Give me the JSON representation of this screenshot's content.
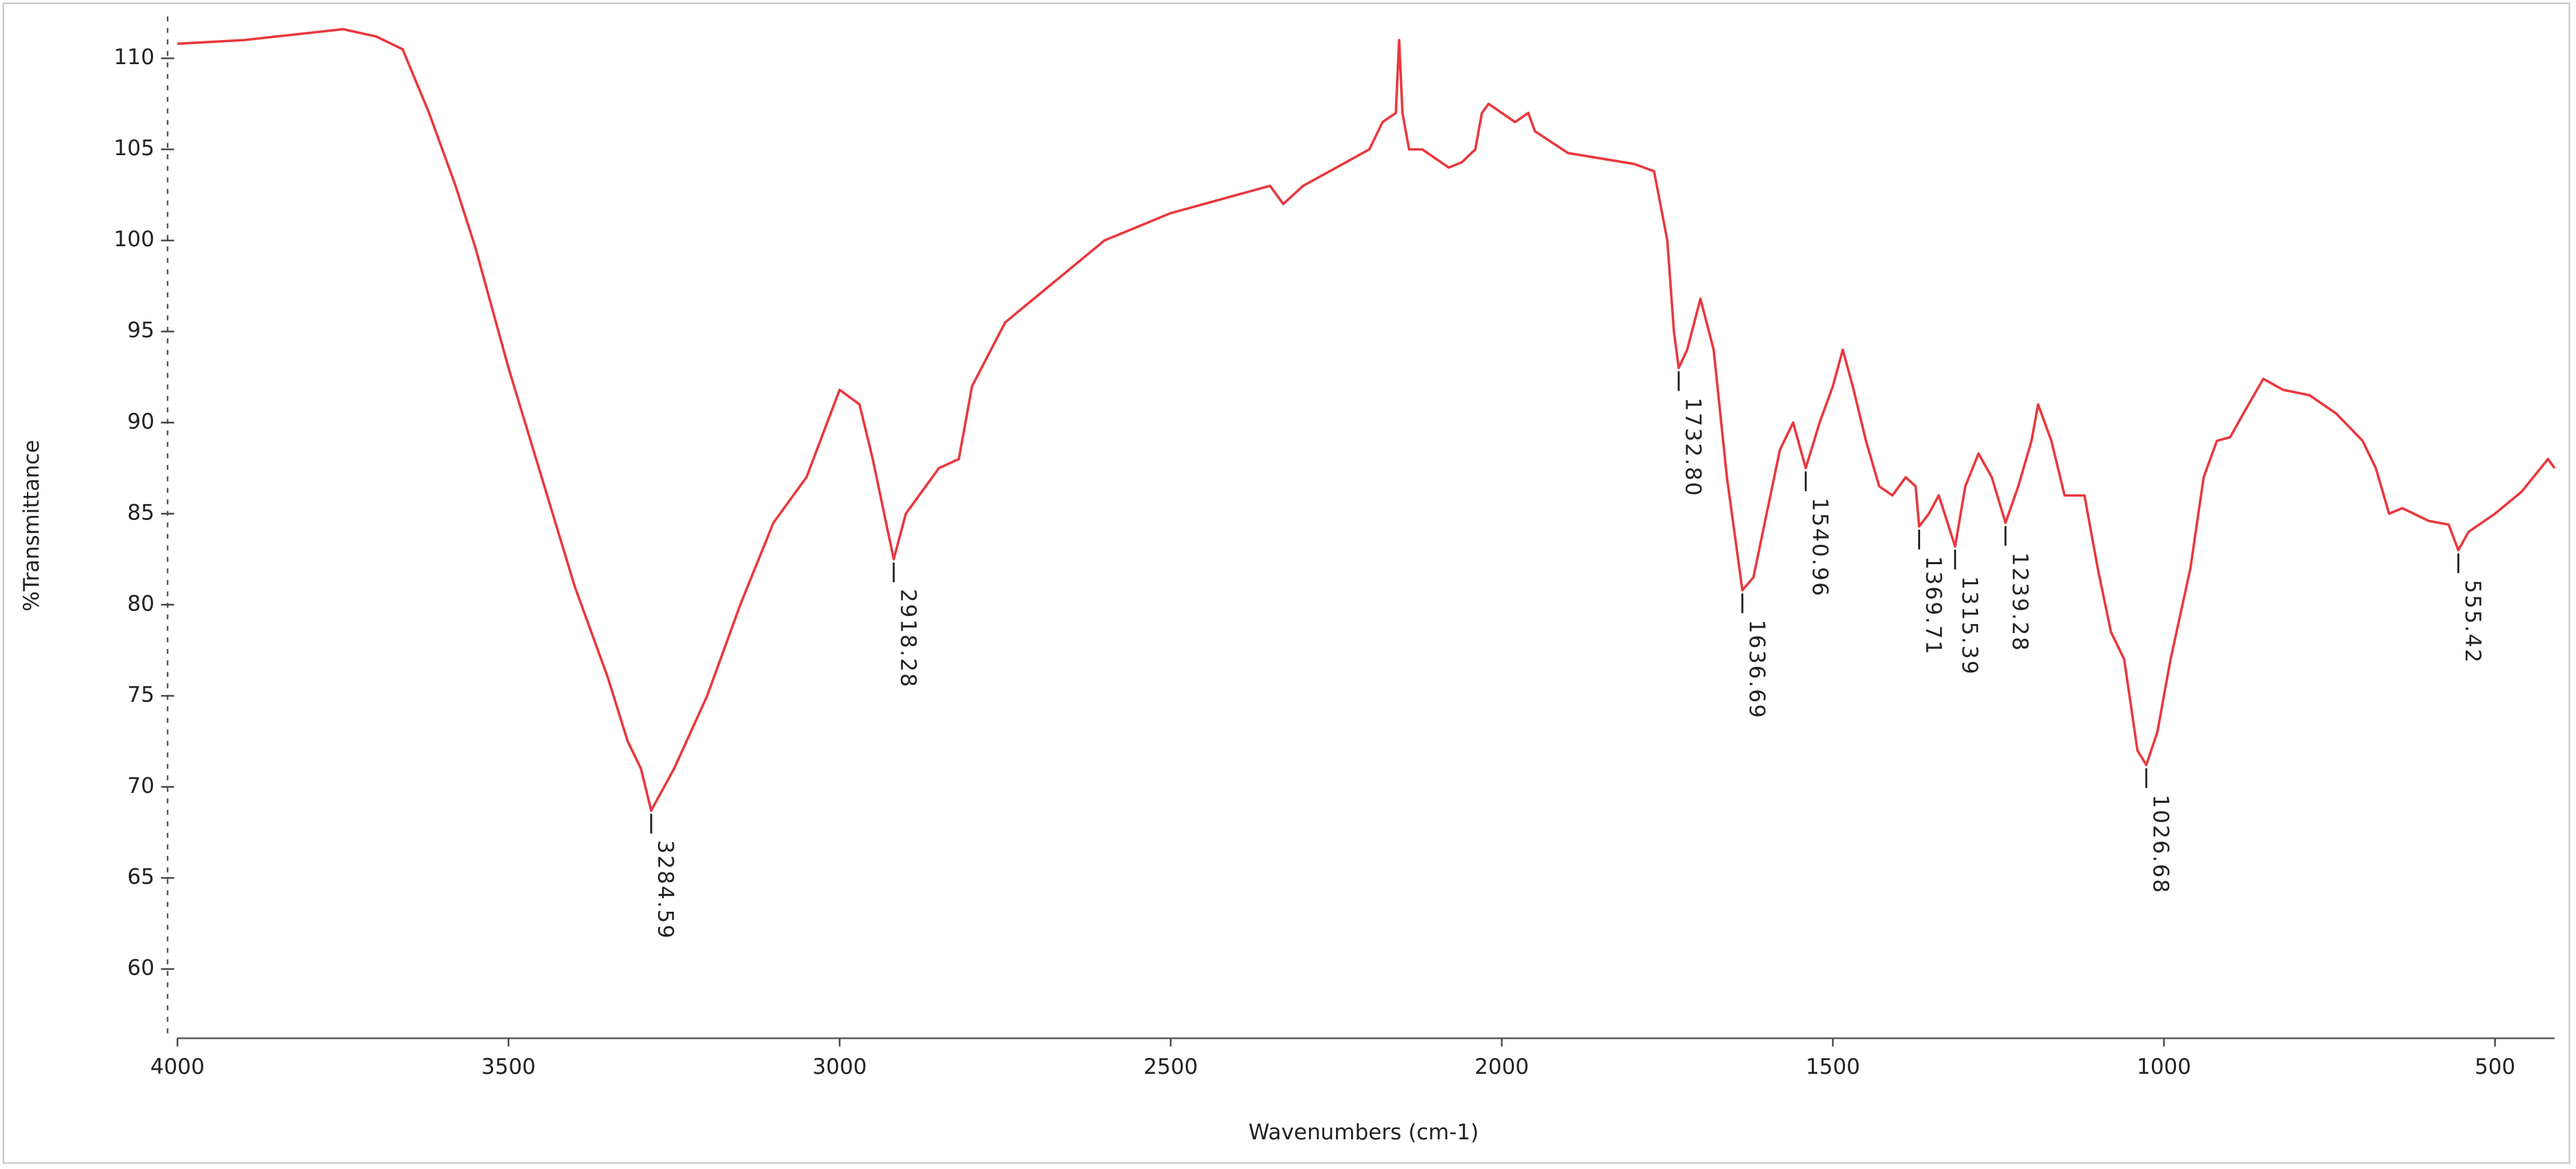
{
  "chart_data": {
    "type": "line",
    "xlabel": "Wavenumbers (cm-1)",
    "ylabel": "%Transmittance",
    "color": "#e8383d",
    "x": [
      4000,
      3900,
      3800,
      3750,
      3700,
      3660,
      3620,
      3580,
      3550,
      3500,
      3450,
      3400,
      3350,
      3320,
      3300,
      3284.59,
      3250,
      3200,
      3150,
      3100,
      3050,
      3000,
      2970,
      2950,
      2918.28,
      2900,
      2850,
      2820,
      2800,
      2750,
      2700,
      2650,
      2600,
      2500,
      2400,
      2350,
      2330,
      2300,
      2250,
      2200,
      2180,
      2160,
      2155,
      2150,
      2140,
      2120,
      2080,
      2060,
      2040,
      2030,
      2020,
      2000,
      1980,
      1960,
      1950,
      1900,
      1850,
      1800,
      1770,
      1750,
      1740,
      1732.8,
      1720,
      1700,
      1680,
      1660,
      1636.69,
      1620,
      1600,
      1580,
      1560,
      1540.96,
      1520,
      1500,
      1485,
      1470,
      1450,
      1430,
      1410,
      1390,
      1375,
      1369.71,
      1355,
      1340,
      1315.39,
      1300,
      1280,
      1260,
      1239.28,
      1220,
      1200,
      1190,
      1170,
      1150,
      1120,
      1100,
      1080,
      1060,
      1040,
      1026.68,
      1010,
      990,
      960,
      940,
      920,
      900,
      880,
      850,
      820,
      780,
      740,
      700,
      680,
      660,
      640,
      600,
      570,
      555.42,
      540,
      500,
      460,
      420,
      410
    ],
    "values": [
      110.8,
      111,
      111.4,
      111.6,
      111.2,
      110.5,
      107,
      103,
      99.6,
      93,
      87,
      81,
      76,
      72.5,
      71,
      68.7,
      71,
      75,
      80,
      84.5,
      87,
      91.8,
      91,
      88,
      82.5,
      85,
      87.5,
      88,
      92,
      95.5,
      97,
      98.5,
      100,
      101.5,
      102.5,
      103,
      102,
      103,
      104,
      105,
      106.5,
      107,
      111,
      107,
      105,
      105,
      104,
      104.3,
      105,
      107,
      107.5,
      107,
      106.5,
      107,
      106,
      104.8,
      104.5,
      104.2,
      103.8,
      100,
      95,
      93,
      94,
      96.8,
      94,
      87,
      80.8,
      81.5,
      85,
      88.5,
      90,
      87.5,
      90,
      92,
      94,
      92,
      89,
      86.5,
      86,
      87,
      86.5,
      84.3,
      85,
      86,
      83.2,
      86.5,
      88.3,
      87,
      84.5,
      86.5,
      89,
      91,
      89,
      86,
      86,
      82,
      78.5,
      77,
      72,
      71.2,
      73,
      77,
      82,
      87,
      89,
      89.2,
      90.5,
      92.4,
      91.8,
      91.5,
      90.5,
      89,
      87.5,
      85,
      85.3,
      84.6,
      84.4,
      83,
      84,
      85,
      86.2,
      88,
      87.5
    ],
    "xlim": [
      4000,
      410
    ],
    "ylim": [
      56.2,
      112.3
    ],
    "xticks": [
      4000,
      3500,
      3000,
      2500,
      2000,
      1500,
      1000,
      500
    ],
    "yticks": [
      60,
      65,
      70,
      75,
      80,
      85,
      90,
      95,
      100,
      105,
      110
    ],
    "peaks": {
      "x": [
        3284.59,
        2918.28,
        {
          "value": 1732.8,
          "label": "1732.80"
        },
        1636.69,
        1540.96,
        1369.71,
        1315.39,
        1239.28,
        1026.68,
        555.42
      ],
      "y": [
        68.7,
        82.5,
        93,
        80.8,
        87.5,
        84.3,
        83.2,
        84.5,
        71.2,
        83
      ]
    }
  }
}
